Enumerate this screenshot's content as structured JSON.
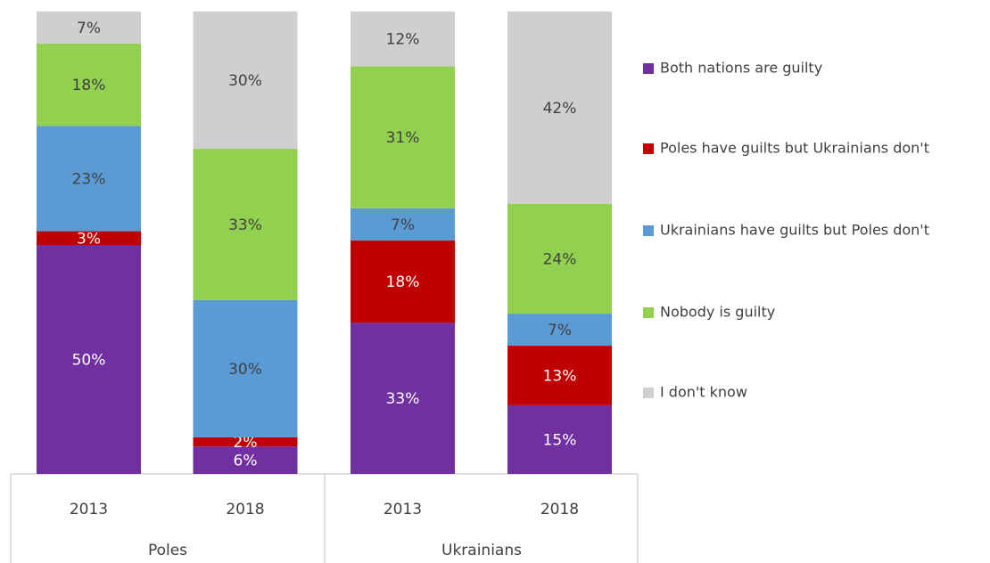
{
  "chart_data": {
    "type": "stacked_bar",
    "categories": [
      "2013",
      "2018",
      "2013",
      "2018"
    ],
    "groups": [
      "Poles",
      "Ukrainians"
    ],
    "series": [
      {
        "name": "Both nations are guilty",
        "color": "#7030a0",
        "label_color": "#ffffff",
        "values": [
          50,
          6,
          33,
          15
        ],
        "value_labels": [
          "50%",
          "6%",
          "33%",
          "15%"
        ]
      },
      {
        "name": "Poles have guilts but Ukrainians don't",
        "color": "#c00000",
        "label_color": "#ffffff",
        "values": [
          3,
          2,
          18,
          13
        ],
        "value_labels": [
          "3%",
          "2%",
          "18%",
          "13%"
        ]
      },
      {
        "name": "Ukrainians have guilts but Poles don't",
        "color": "#5b9bd5",
        "label_color": "#404040",
        "values": [
          23,
          30,
          7,
          7
        ],
        "value_labels": [
          "23%",
          "30%",
          "7%",
          "7%"
        ]
      },
      {
        "name": "Nobody is guilty",
        "color": "#92d050",
        "label_color": "#404040",
        "values": [
          18,
          33,
          31,
          24
        ],
        "value_labels": [
          "18%",
          "33%",
          "31%",
          "24%"
        ]
      },
      {
        "name": "I don't know",
        "color": "#d0cece",
        "label_color": "#404040",
        "values": [
          7,
          30,
          12,
          42
        ],
        "value_labels": [
          "7%",
          "30%",
          "12%",
          "42%"
        ]
      }
    ],
    "legend": "right"
  }
}
